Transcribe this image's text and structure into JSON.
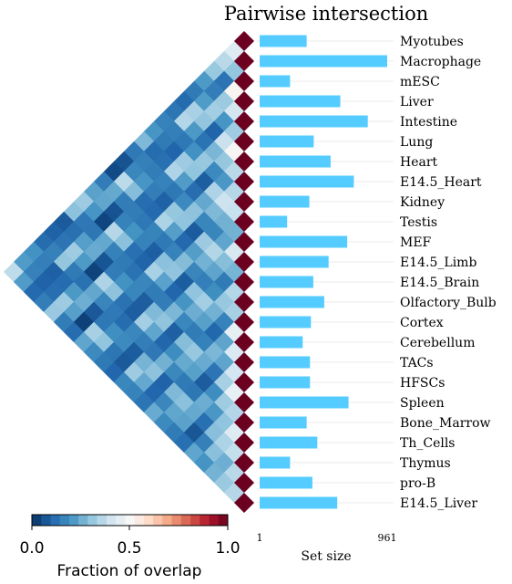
{
  "chart_data": {
    "type": "heatmap",
    "title": "Pairwise intersection",
    "categories": [
      "Myotubes",
      "Macrophage",
      "mESC",
      "Liver",
      "Intestine",
      "Lung",
      "Heart",
      "E14.5_Heart",
      "Kidney",
      "Testis",
      "MEF",
      "E14.5_Limb",
      "E14.5_Brain",
      "Olfactory_Bulb",
      "Cortex",
      "Cerebellum",
      "TACs",
      "HFSCs",
      "Spleen",
      "Bone_Marrow",
      "Th_Cells",
      "Thymus",
      "pro-B",
      "E14.5_Liver"
    ],
    "set_sizes": [
      355,
      961,
      230,
      608,
      815,
      408,
      535,
      710,
      375,
      208,
      660,
      520,
      405,
      487,
      387,
      325,
      380,
      380,
      670,
      355,
      435,
      230,
      398,
      585
    ],
    "set_size_axis": {
      "label": "Set size",
      "min_label": "1",
      "max_label": "961",
      "range": [
        1,
        961
      ]
    },
    "colorbar": {
      "label": "Fraction of overlap",
      "ticks": [
        "0.0",
        "0.5",
        "1.0"
      ],
      "range": [
        0,
        1
      ],
      "colormap": "RdBu_r"
    },
    "colors": {
      "bar": "#55ccff",
      "diagonal": "#6b0021",
      "low": "#053061",
      "mid": "#f7f7f7",
      "high": "#67001f"
    },
    "overlap_seeds": [
      0.53,
      0.29,
      0.47,
      0.38,
      0.33,
      0.48,
      0.41,
      0.45,
      0.3,
      0.43,
      0.36,
      0.35,
      0.4,
      0.31,
      0.36,
      0.37,
      0.28,
      0.4,
      0.33,
      0.34,
      0.37,
      0.31,
      0.38
    ]
  }
}
